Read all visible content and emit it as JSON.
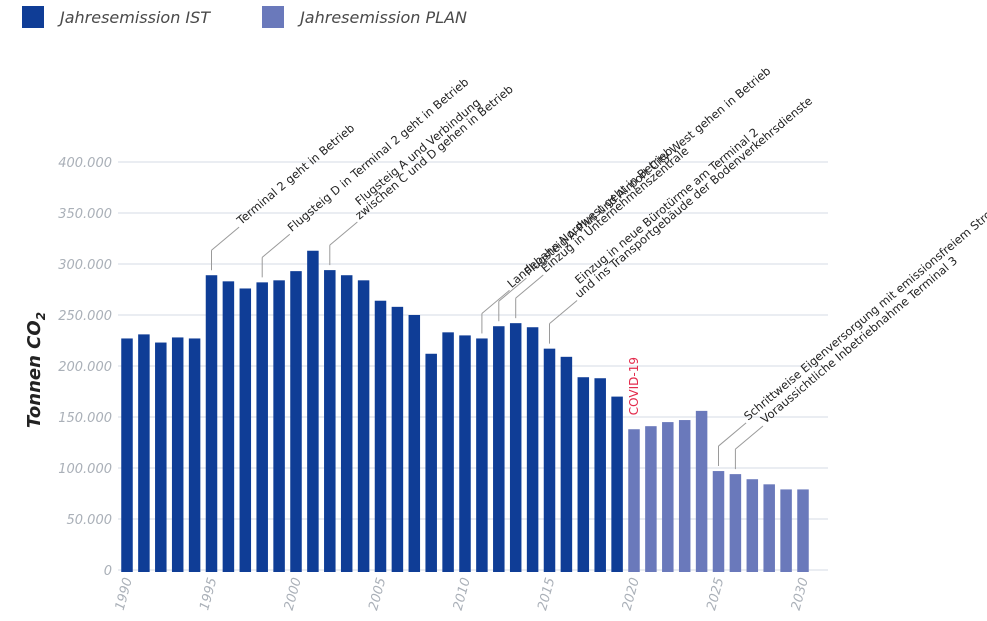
{
  "legend": {
    "ist_label": "Jahresemission IST",
    "plan_label": "Jahresemission PLAN"
  },
  "colors": {
    "ist": "#0f3d96",
    "plan": "#6a79bb",
    "covid": "#e32b4c",
    "grid": "#d6dbe4",
    "tick": "#aab0b8",
    "annotation_line": "#9a9a9a"
  },
  "chart_data": {
    "type": "bar",
    "ylabel": "Tonnen CO",
    "ylabel_subscript": "2",
    "ylim": [
      0,
      400000
    ],
    "grid": true,
    "legend_position": "top-left",
    "y_ticks": [
      0,
      50000,
      100000,
      150000,
      200000,
      250000,
      300000,
      350000,
      400000
    ],
    "y_tick_labels": [
      "0",
      "50.000",
      "100.000",
      "150.000",
      "200.000",
      "250.000",
      "300.000",
      "350.000",
      "400.000"
    ],
    "x_tick_labels": [
      "1990",
      "1995",
      "2000",
      "2005",
      "2010",
      "2015",
      "2020",
      "2025",
      "2030"
    ],
    "series": [
      {
        "name": "Jahresemission IST",
        "years": [
          1990,
          1991,
          1992,
          1993,
          1994,
          1995,
          1996,
          1997,
          1998,
          1999,
          2000,
          2001,
          2002,
          2003,
          2004,
          2005,
          2006,
          2007,
          2008,
          2009,
          2010,
          2011,
          2012,
          2013,
          2014,
          2015,
          2016,
          2017,
          2018,
          2019
        ],
        "values": [
          227000,
          231000,
          223000,
          228000,
          227000,
          289000,
          283000,
          276000,
          282000,
          284000,
          293000,
          313000,
          294000,
          289000,
          284000,
          264000,
          258000,
          250000,
          212000,
          233000,
          230000,
          227000,
          239000,
          242000,
          238000,
          217000,
          209000,
          189000,
          188000,
          170000
        ]
      },
      {
        "name": "Jahresemission PLAN",
        "years": [
          2020,
          2021,
          2022,
          2023,
          2024,
          2025,
          2026,
          2027,
          2028,
          2029,
          2030
        ],
        "values": [
          138000,
          141000,
          145000,
          147000,
          156000,
          97000,
          94000,
          89000,
          84000,
          79000,
          79000
        ]
      }
    ],
    "annotations": [
      {
        "year": 1995,
        "lines": [
          "Terminal 2 geht in Betrieb"
        ]
      },
      {
        "year": 1998,
        "lines": [
          "Flugsteig D in Terminal 2 geht in Betrieb"
        ]
      },
      {
        "year": 2002,
        "lines": [
          "Flugsteig A und Verbindung",
          "zwischen C und D gehen in Betrieb"
        ]
      },
      {
        "year": 2011,
        "lines": [
          "Landebahn Nordwest geht in Betrieb"
        ]
      },
      {
        "year": 2012,
        "lines": [
          "Flugsteig A-Plus und Airport City West gehen in Betrieb"
        ]
      },
      {
        "year": 2013,
        "lines": [
          "Einzug in Unternehmenszentrale"
        ]
      },
      {
        "year": 2015,
        "lines": [
          "Einzug in neue Bürotürme am Terminal 2",
          "und ins Transportgebäude der Bodenverkehrsdienste"
        ]
      },
      {
        "year": 2025,
        "lines": [
          "Schrittweise Eigenversorgung mit emissionsfreiem Strom"
        ]
      },
      {
        "year": 2026,
        "lines": [
          "Voraussichtliche Inbetriebnahme Terminal 3"
        ]
      }
    ],
    "covid_label": {
      "year": 2020,
      "text": "COVID-19"
    }
  }
}
